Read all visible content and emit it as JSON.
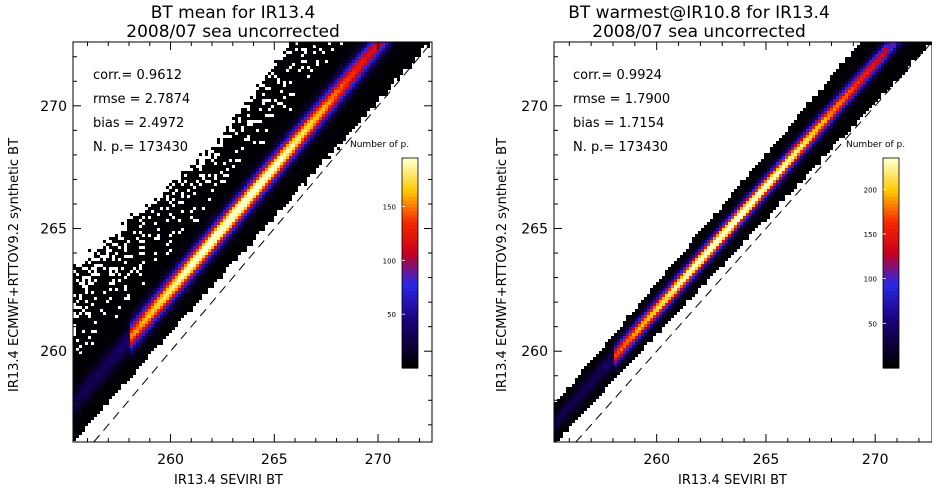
{
  "chart_data": [
    {
      "type": "heatmap",
      "title": "BT mean for IR13.4",
      "subtitle": "2008/07 sea uncorrected",
      "xlabel": "IR13.4 SEVIRI BT",
      "ylabel": "IR13.4 ECMWF+RTTOV9.2 synthetic BT",
      "xlim": [
        255.3,
        272.6
      ],
      "ylim": [
        256.3,
        272.6
      ],
      "x_ticks": [
        "260",
        "265",
        "270"
      ],
      "y_ticks": [
        "260",
        "265",
        "270"
      ],
      "reference_line": "1:1 dashed",
      "stats": [
        "corr.= 0.9612",
        "rmse = 2.7874",
        "bias = 2.4972",
        "N. p.=   173430"
      ],
      "colorbar": {
        "title": "Number of p.",
        "ticks": [
          "50",
          "100",
          "150"
        ],
        "max": 195
      },
      "density": {
        "offset": 2.4972,
        "spread": 0.55,
        "plume_width": 1.6,
        "peak_x": 263.0
      }
    },
    {
      "type": "heatmap",
      "title": "BT warmest@IR10.8 for IR13.4",
      "subtitle": "2008/07 sea uncorrected",
      "xlabel": "IR13.4 SEVIRI BT",
      "ylabel": "IR13.4 ECMWF+RTTOV9.2 synthetic BT",
      "xlim": [
        255.3,
        272.6
      ],
      "ylim": [
        256.3,
        272.6
      ],
      "x_ticks": [
        "260",
        "265",
        "270"
      ],
      "y_ticks": [
        "260",
        "265",
        "270"
      ],
      "reference_line": "1:1 dashed",
      "stats": [
        "corr.= 0.9924",
        "rmse = 1.7900",
        "bias = 1.7154",
        "N. p.=   173430"
      ],
      "colorbar": {
        "title": "Number of p.",
        "ticks": [
          "50",
          "100",
          "150",
          "200"
        ],
        "max": 235
      },
      "density": {
        "offset": 1.7154,
        "spread": 0.4,
        "plume_width": 0.6,
        "peak_x": 263.5
      }
    }
  ]
}
